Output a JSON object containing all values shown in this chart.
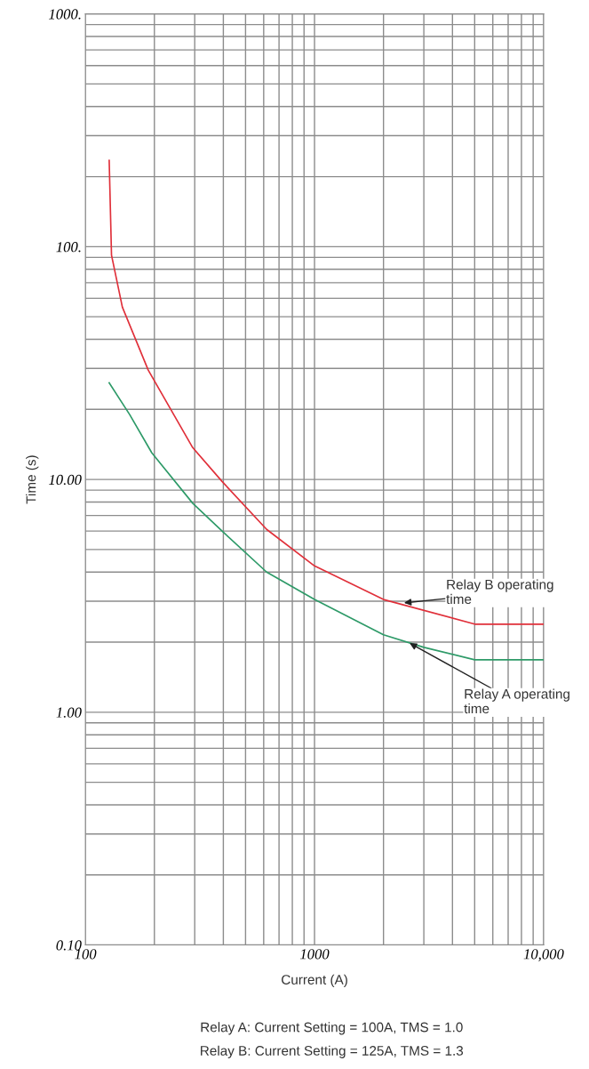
{
  "chart_data": {
    "type": "line",
    "xlabel": "Current (A)",
    "ylabel": "Time (s)",
    "log": "xy",
    "grid": true,
    "marker": "none",
    "line_style": "solid",
    "xlim": [
      100,
      10000
    ],
    "ylim": [
      0.1,
      1000
    ],
    "xticks": [
      {
        "value": 100,
        "label": "100"
      },
      {
        "value": 200,
        "label": null
      },
      {
        "value": 300,
        "label": null
      },
      {
        "value": 400,
        "label": null
      },
      {
        "value": 500,
        "label": null
      },
      {
        "value": 600,
        "label": null
      },
      {
        "value": 700,
        "label": null
      },
      {
        "value": 800,
        "label": null
      },
      {
        "value": 900,
        "label": null
      },
      {
        "value": 1000,
        "label": "1000"
      },
      {
        "value": 2000,
        "label": null
      },
      {
        "value": 3000,
        "label": null
      },
      {
        "value": 4000,
        "label": null
      },
      {
        "value": 5000,
        "label": null
      },
      {
        "value": 6000,
        "label": null
      },
      {
        "value": 7000,
        "label": null
      },
      {
        "value": 8000,
        "label": null
      },
      {
        "value": 9000,
        "label": null
      },
      {
        "value": 10000,
        "label": "10,000"
      }
    ],
    "yticks": [
      {
        "value": 0.1,
        "label": "0.10"
      },
      {
        "value": 0.2,
        "label": null
      },
      {
        "value": 0.3,
        "label": null
      },
      {
        "value": 0.4,
        "label": null
      },
      {
        "value": 0.5,
        "label": null
      },
      {
        "value": 0.6,
        "label": null
      },
      {
        "value": 0.7,
        "label": null
      },
      {
        "value": 0.8,
        "label": null
      },
      {
        "value": 0.9,
        "label": null
      },
      {
        "value": 1,
        "label": "1.00"
      },
      {
        "value": 2,
        "label": null
      },
      {
        "value": 3,
        "label": null
      },
      {
        "value": 4,
        "label": null
      },
      {
        "value": 5,
        "label": null
      },
      {
        "value": 6,
        "label": null
      },
      {
        "value": 7,
        "label": null
      },
      {
        "value": 8,
        "label": null
      },
      {
        "value": 9,
        "label": null
      },
      {
        "value": 10,
        "label": "10.00"
      },
      {
        "value": 20,
        "label": null
      },
      {
        "value": 30,
        "label": null
      },
      {
        "value": 40,
        "label": null
      },
      {
        "value": 50,
        "label": null
      },
      {
        "value": 60,
        "label": null
      },
      {
        "value": 70,
        "label": null
      },
      {
        "value": 80,
        "label": null
      },
      {
        "value": 90,
        "label": null
      },
      {
        "value": 100,
        "label": "100."
      },
      {
        "value": 200,
        "label": null
      },
      {
        "value": 300,
        "label": null
      },
      {
        "value": 400,
        "label": null
      },
      {
        "value": 500,
        "label": null
      },
      {
        "value": 600,
        "label": null
      },
      {
        "value": 700,
        "label": null
      },
      {
        "value": 800,
        "label": null
      },
      {
        "value": 900,
        "label": null
      },
      {
        "value": 1000,
        "label": "1000."
      }
    ],
    "series": [
      {
        "color": "#e0303a",
        "x": [
          127,
          130,
          145,
          188,
          294,
          395,
          618,
          1000,
          2000,
          5000,
          10000
        ],
        "values": [
          235,
          92,
          55,
          29.5,
          13.7,
          9.8,
          6.1,
          4.25,
          3.05,
          2.39,
          2.39
        ]
      },
      {
        "color": "#2e9a68",
        "x": [
          127,
          156,
          195,
          294,
          395,
          618,
          1000,
          2000,
          3000,
          5000,
          10000
        ],
        "values": [
          26,
          19,
          13,
          7.9,
          6.0,
          4.0,
          3.05,
          2.15,
          1.9,
          1.68,
          1.68
        ]
      }
    ],
    "annotations": [
      {
        "text": "Relay B operating time",
        "x": 2460,
        "y": 2.95
      },
      {
        "text": "Relay A operating time",
        "x": 2600,
        "y": 1.98
      },
      "Relay A: Current Setting = 100A, TMS = 1.0",
      "Relay B: Current Setting = 125A, TMS = 1.3"
    ]
  }
}
